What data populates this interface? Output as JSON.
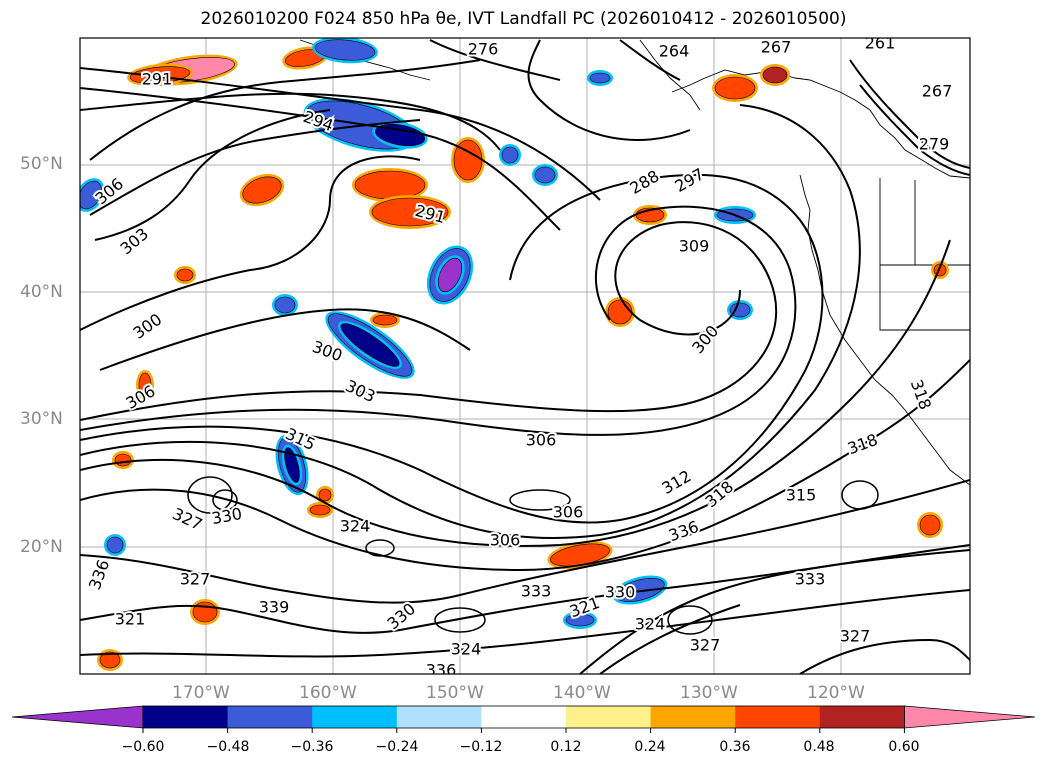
{
  "title": "2026010200 F024 850 hPa θe, IVT Landfall PC (2026010412 - 2026010500)",
  "lon_labels": [
    "170°W",
    "160°W",
    "150°W",
    "140°W",
    "130°W",
    "120°W"
  ],
  "lat_labels": [
    "50°N",
    "40°N",
    "30°N",
    "20°N"
  ],
  "colorbar": {
    "colors": [
      "#9933cc",
      "#00008b",
      "#3b5bd9",
      "#00bfff",
      "#b0e0ff",
      "#ffffff",
      "#fff08c",
      "#ffa500",
      "#ff4500",
      "#b22222",
      "#ff88aa"
    ],
    "ticks": [
      "−0.60",
      "−0.48",
      "−0.36",
      "−0.24",
      "−0.12",
      "0.12",
      "0.24",
      "0.36",
      "0.48",
      "0.60"
    ]
  },
  "contour_labels": [
    "291",
    "276",
    "261",
    "264",
    "267",
    "294",
    "279",
    "267",
    "306",
    "303",
    "300",
    "306",
    "288",
    "297",
    "291",
    "309",
    "300",
    "300",
    "303",
    "306",
    "315",
    "306",
    "312",
    "318",
    "306",
    "318",
    "315",
    "327",
    "330",
    "324",
    "327",
    "333",
    "324",
    "336",
    "321",
    "330",
    "324",
    "327",
    "327",
    "333",
    "336",
    "330",
    "339",
    "336",
    "321",
    "318"
  ]
}
